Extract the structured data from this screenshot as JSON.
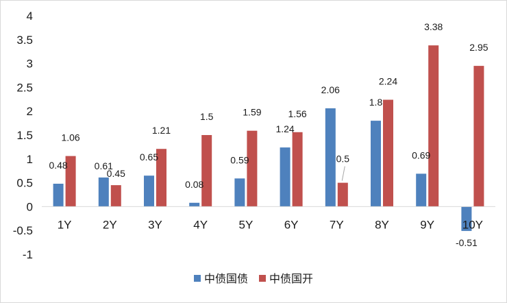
{
  "chart_data": {
    "type": "bar",
    "categories": [
      "1Y",
      "2Y",
      "3Y",
      "4Y",
      "5Y",
      "6Y",
      "7Y",
      "8Y",
      "9Y",
      "10Y"
    ],
    "series": [
      {
        "name": "中债国债",
        "color": "#4e81bd",
        "values": [
          0.48,
          0.61,
          0.65,
          0.08,
          0.59,
          1.24,
          2.06,
          1.8,
          0.69,
          -0.51
        ],
        "labels": [
          "0.48",
          "0.61",
          "0.65",
          "0.08",
          "0.59",
          "1.24",
          "2.06",
          "1.8",
          "0.69",
          "-0.51"
        ]
      },
      {
        "name": "中债国开",
        "color": "#c0504d",
        "values": [
          1.06,
          0.45,
          1.21,
          1.5,
          1.59,
          1.56,
          0.5,
          2.24,
          3.38,
          2.95
        ],
        "labels": [
          "1.06",
          "0.45",
          "1.21",
          "1.5",
          "1.59",
          "1.56",
          "0.5",
          "2.24",
          "3.38",
          "2.95"
        ]
      }
    ],
    "ylim": [
      -1,
      4
    ],
    "yticks": [
      "-1",
      "-0.5",
      "0",
      "0.5",
      "1",
      "1.5",
      "2",
      "2.5",
      "3",
      "3.5",
      "4"
    ],
    "ytick_values": [
      -1,
      -0.5,
      0,
      0.5,
      1,
      1.5,
      2,
      2.5,
      3,
      3.5,
      4
    ],
    "grid": false,
    "legend_position": "bottom",
    "title": "",
    "xlabel": "",
    "ylabel": ""
  }
}
